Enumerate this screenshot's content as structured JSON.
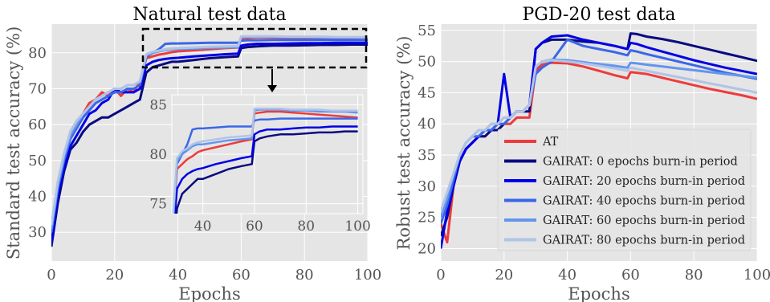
{
  "chart_data": [
    {
      "type": "line",
      "title": "Natural test data",
      "xlabel": "Epochs",
      "ylabel": "Standard test accuracy (%)",
      "xlim": [
        0,
        100
      ],
      "ylim": [
        22,
        88
      ],
      "xticks": [
        "0",
        "20",
        "40",
        "60",
        "80",
        "100"
      ],
      "yticks": [
        "30",
        "40",
        "50",
        "60",
        "70",
        "80"
      ],
      "grid": true,
      "inset": {
        "xlim": [
          28,
          102
        ],
        "ylim": [
          74,
          86
        ],
        "xticks": [
          "40",
          "60",
          "80",
          "100"
        ],
        "yticks": [
          "75",
          "80",
          "85"
        ]
      },
      "series": [
        {
          "name": "AT",
          "color": "#ee3b3b",
          "x": [
            0,
            2,
            4,
            6,
            8,
            10,
            12,
            14,
            16,
            18,
            20,
            22,
            24,
            26,
            28,
            30,
            32,
            34,
            36,
            38,
            40,
            45,
            50,
            55,
            59,
            60,
            62,
            65,
            70,
            75,
            80,
            85,
            90,
            95,
            100
          ],
          "values": [
            30,
            43,
            51,
            58,
            61,
            63,
            66,
            67,
            69,
            68,
            70,
            68,
            70,
            69,
            72,
            78.5,
            79,
            79.5,
            79.8,
            80.2,
            80.4,
            80.7,
            81.0,
            81.3,
            81.5,
            84.1,
            84.2,
            84.3,
            84.3,
            84.2,
            84.1,
            84.0,
            83.9,
            83.8,
            83.7
          ]
        },
        {
          "name": "GAIRAT: 0 epochs burn-in period",
          "color": "#0a0a80",
          "x": [
            0,
            2,
            4,
            6,
            8,
            10,
            12,
            14,
            16,
            18,
            20,
            22,
            24,
            26,
            28,
            30,
            32,
            34,
            36,
            38,
            40,
            45,
            50,
            55,
            59,
            60,
            62,
            65,
            70,
            75,
            80,
            85,
            90,
            95,
            100
          ],
          "values": [
            26,
            38,
            47,
            53,
            55,
            58,
            60,
            61,
            62,
            62,
            63,
            64,
            65,
            66,
            67,
            74.5,
            76,
            76.5,
            77,
            77.5,
            77.5,
            78,
            78.5,
            78.8,
            79,
            81.3,
            81.6,
            81.8,
            82.0,
            82.0,
            82.1,
            82.2,
            82.2,
            82.3,
            82.3
          ]
        },
        {
          "name": "GAIRAT: 20 epochs burn-in period",
          "color": "#0000e6",
          "x": [
            0,
            2,
            4,
            6,
            8,
            10,
            12,
            14,
            16,
            18,
            20,
            22,
            24,
            26,
            28,
            30,
            32,
            34,
            36,
            38,
            40,
            45,
            50,
            55,
            59,
            60,
            62,
            65,
            70,
            75,
            80,
            85,
            90,
            95,
            100
          ],
          "values": [
            27,
            40,
            48,
            54,
            57,
            60,
            63,
            64,
            66,
            67,
            70,
            69,
            69,
            69,
            70,
            76.5,
            77.5,
            78,
            78.3,
            78.5,
            78.6,
            79,
            79.3,
            79.6,
            79.8,
            82.0,
            82.3,
            82.5,
            82.5,
            82.6,
            82.7,
            82.7,
            82.8,
            82.8,
            82.8
          ]
        },
        {
          "name": "GAIRAT: 40 epochs burn-in period",
          "color": "#3a66e8",
          "x": [
            0,
            2,
            4,
            6,
            8,
            10,
            12,
            14,
            16,
            18,
            20,
            22,
            24,
            26,
            28,
            30,
            32,
            34,
            36,
            38,
            40,
            45,
            50,
            55,
            59,
            60,
            62,
            65,
            70,
            75,
            80,
            85,
            90,
            95,
            100
          ],
          "values": [
            30,
            42,
            50,
            56,
            59,
            62,
            64,
            66,
            67,
            68,
            69,
            69,
            70,
            70,
            71,
            79,
            80,
            81,
            82.5,
            82.6,
            82.6,
            82.7,
            82.8,
            82.8,
            82.8,
            83.4,
            83.5,
            83.5,
            83.6,
            83.6,
            83.6,
            83.6,
            83.6,
            83.6,
            83.6
          ]
        },
        {
          "name": "GAIRAT: 60 epochs burn-in period",
          "color": "#6495ed",
          "x": [
            0,
            2,
            4,
            6,
            8,
            10,
            12,
            14,
            16,
            18,
            20,
            22,
            24,
            26,
            28,
            30,
            32,
            34,
            36,
            38,
            40,
            45,
            50,
            55,
            59,
            60,
            62,
            65,
            70,
            75,
            80,
            85,
            90,
            95,
            100
          ],
          "values": [
            31,
            43,
            51,
            57,
            60,
            63,
            65,
            67,
            68,
            69,
            70,
            70,
            71,
            71,
            72,
            79.3,
            80,
            80.4,
            80.8,
            81,
            81,
            81.2,
            81.4,
            81.5,
            81.6,
            84.4,
            84.5,
            84.5,
            84.5,
            84.4,
            84.4,
            84.3,
            84.3,
            84.3,
            84.2
          ]
        },
        {
          "name": "GAIRAT: 80 epochs burn-in period",
          "color": "#b0c4e6",
          "x": [
            0,
            2,
            4,
            6,
            8,
            10,
            12,
            14,
            16,
            18,
            20,
            22,
            24,
            26,
            28,
            30,
            32,
            34,
            36,
            38,
            40,
            45,
            50,
            55,
            59,
            60,
            62,
            65,
            70,
            75,
            80,
            85,
            90,
            95,
            100
          ],
          "values": [
            32,
            44,
            52,
            58,
            61,
            63,
            65,
            67,
            68,
            69,
            70,
            70,
            71,
            71,
            72,
            79.6,
            80.3,
            80.6,
            81,
            81.2,
            81.3,
            81.5,
            81.7,
            81.8,
            81.9,
            84.6,
            84.6,
            84.6,
            84.6,
            84.5,
            84.5,
            84.5,
            84.4,
            84.4,
            84.4
          ]
        }
      ]
    },
    {
      "type": "line",
      "title": "PGD-20 test data",
      "xlabel": "Epochs",
      "ylabel": "Robust test accuracy (%)",
      "xlim": [
        0,
        100
      ],
      "ylim": [
        18,
        56
      ],
      "xticks": [
        "0",
        "20",
        "40",
        "60",
        "80",
        "100"
      ],
      "yticks": [
        "20",
        "25",
        "30",
        "35",
        "40",
        "45",
        "50",
        "55"
      ],
      "grid": true,
      "legend_position": "lower-right",
      "series": [
        {
          "name": "AT",
          "color": "#ee3b3b",
          "x": [
            0,
            2,
            4,
            6,
            8,
            10,
            12,
            14,
            16,
            18,
            20,
            22,
            24,
            26,
            28,
            30,
            32,
            35,
            40,
            45,
            50,
            55,
            59,
            60,
            62,
            65,
            70,
            75,
            80,
            85,
            90,
            95,
            100
          ],
          "values": [
            24,
            21,
            30,
            34,
            36,
            37,
            38,
            38,
            39,
            39,
            40,
            40,
            41,
            41,
            41,
            48.5,
            49.5,
            49.8,
            49.7,
            49.2,
            48.5,
            47.8,
            47.3,
            48.3,
            48.2,
            48,
            47.4,
            46.8,
            46.2,
            45.6,
            45.1,
            44.6,
            44.0
          ]
        },
        {
          "name": "GAIRAT: 0 epochs burn-in period",
          "color": "#0a0a80",
          "x": [
            0,
            2,
            4,
            6,
            8,
            10,
            12,
            14,
            16,
            18,
            20,
            22,
            24,
            26,
            28,
            30,
            32,
            35,
            40,
            45,
            50,
            55,
            59,
            60,
            62,
            65,
            70,
            75,
            80,
            85,
            90,
            95,
            100
          ],
          "values": [
            22,
            25,
            30,
            34,
            36,
            37,
            38,
            38,
            39,
            39,
            40,
            41,
            42,
            42,
            42,
            52,
            53,
            53.5,
            53.5,
            53.2,
            53,
            52.5,
            52,
            54.5,
            54.4,
            54,
            53.6,
            53.1,
            52.5,
            51.9,
            51.3,
            50.7,
            50.1
          ]
        },
        {
          "name": "GAIRAT: 20 epochs burn-in period",
          "color": "#0000e6",
          "x": [
            0,
            2,
            4,
            6,
            8,
            10,
            12,
            14,
            16,
            18,
            20,
            22,
            24,
            26,
            28,
            30,
            32,
            35,
            40,
            45,
            50,
            55,
            59,
            60,
            62,
            65,
            70,
            75,
            80,
            85,
            90,
            95,
            100
          ],
          "values": [
            20,
            26,
            30,
            34,
            36,
            37,
            38,
            39,
            39,
            40,
            48,
            41,
            42,
            42,
            43,
            52,
            53,
            54,
            54.2,
            53.5,
            53,
            52.5,
            52,
            53,
            52.8,
            52.3,
            51.6,
            50.9,
            50.2,
            49.6,
            49.0,
            48.5,
            48.0
          ]
        },
        {
          "name": "GAIRAT: 40 epochs burn-in period",
          "color": "#3a66e8",
          "x": [
            0,
            2,
            4,
            6,
            8,
            10,
            12,
            14,
            16,
            18,
            20,
            22,
            24,
            26,
            28,
            30,
            32,
            35,
            40,
            45,
            50,
            55,
            59,
            60,
            62,
            65,
            70,
            75,
            80,
            85,
            90,
            95,
            100
          ],
          "values": [
            24,
            27,
            31,
            35,
            37,
            38,
            38,
            39,
            39,
            40,
            40,
            41,
            42,
            42,
            43,
            48,
            49,
            50,
            53.5,
            52.5,
            52,
            51.5,
            51,
            51.8,
            51.6,
            51.2,
            50.6,
            50.0,
            49.4,
            48.8,
            48.2,
            47.7,
            47.2
          ]
        },
        {
          "name": "GAIRAT: 60 epochs burn-in period",
          "color": "#6495ed",
          "x": [
            0,
            2,
            4,
            6,
            8,
            10,
            12,
            14,
            16,
            18,
            20,
            22,
            24,
            26,
            28,
            30,
            32,
            35,
            40,
            45,
            50,
            55,
            59,
            60,
            62,
            65,
            70,
            75,
            80,
            85,
            90,
            95,
            100
          ],
          "values": [
            25,
            28,
            32,
            35,
            37,
            38,
            39,
            39,
            40,
            40,
            41,
            41,
            42,
            42,
            43,
            49,
            50,
            50.3,
            50.2,
            49.9,
            49.6,
            49.3,
            49,
            49.8,
            49.7,
            49.5,
            49.2,
            48.9,
            48.6,
            48.3,
            48.0,
            47.7,
            47.4
          ]
        },
        {
          "name": "GAIRAT: 80 epochs burn-in period",
          "color": "#b0c4e6",
          "x": [
            0,
            2,
            4,
            6,
            8,
            10,
            12,
            14,
            16,
            18,
            20,
            22,
            24,
            26,
            28,
            30,
            32,
            35,
            40,
            45,
            50,
            55,
            59,
            60,
            62,
            65,
            70,
            75,
            80,
            85,
            90,
            95,
            100
          ],
          "values": [
            26,
            29,
            32,
            35,
            37,
            38,
            39,
            39,
            40,
            40,
            41,
            41,
            42,
            42,
            43,
            49.2,
            50,
            50.2,
            50,
            49.7,
            49.3,
            48.9,
            48.5,
            49,
            48.8,
            48.5,
            48.0,
            47.5,
            47.0,
            46.5,
            46.0,
            45.5,
            45.0
          ]
        }
      ]
    }
  ]
}
